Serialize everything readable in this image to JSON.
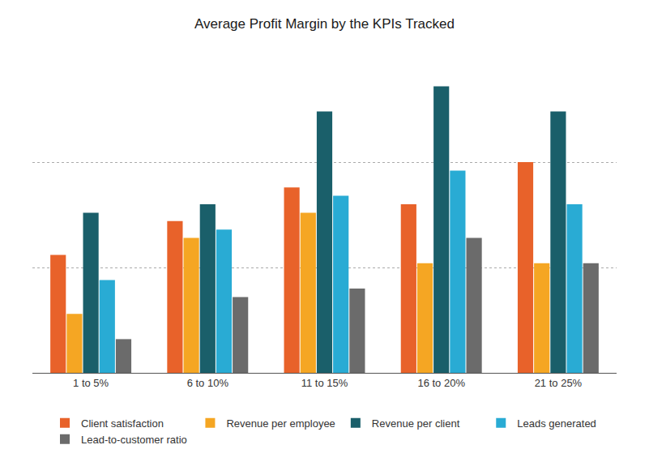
{
  "chart_data": {
    "type": "bar",
    "title": "Average Profit Margin by the KPIs Tracked",
    "categories": [
      "1 to 5%",
      "6 to 10%",
      "11 to 15%",
      "16 to 20%",
      "21 to 25%"
    ],
    "series": [
      {
        "name": "Client satisfaction",
        "color": "#E8622A",
        "values": [
          28,
          36,
          44,
          40,
          50
        ]
      },
      {
        "name": "Revenue per employee",
        "color": "#F5A623",
        "values": [
          14,
          32,
          38,
          26,
          26
        ]
      },
      {
        "name": "Revenue per client",
        "color": "#1A5F6A",
        "values": [
          38,
          40,
          62,
          68,
          62
        ]
      },
      {
        "name": "Leads generated",
        "color": "#29ABD4",
        "values": [
          22,
          34,
          42,
          48,
          40
        ]
      },
      {
        "name": "Lead-to-customer ratio",
        "color": "#6B6B6B",
        "values": [
          8,
          18,
          20,
          32,
          26
        ]
      }
    ],
    "ylim": [
      0,
      75
    ],
    "yticks": [
      0,
      25,
      50,
      75
    ],
    "grid": true,
    "tick_labels": "x",
    "legend": "bottom"
  }
}
